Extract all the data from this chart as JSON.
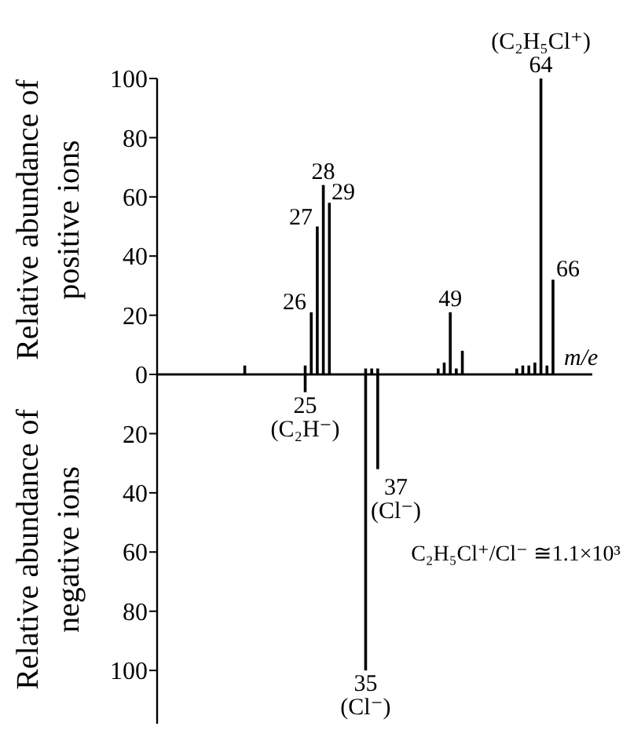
{
  "chart_data": [
    {
      "type": "bar",
      "xlabel": "m/e",
      "ylabel": "Relative abundance of positive ions",
      "ylim": [
        0,
        100
      ],
      "yticks": [
        0,
        20,
        40,
        60,
        80,
        100
      ],
      "color": "#000000",
      "categories": [
        null,
        null,
        null,
        null,
        null,
        null,
        null,
        null,
        null,
        null,
        null,
        null,
        null,
        null,
        null,
        null,
        null,
        null,
        null,
        null,
        null,
        null,
        null,
        null,
        null,
        null,
        null,
        null,
        null,
        null,
        null,
        null,
        null,
        null,
        null,
        null,
        null,
        null,
        null,
        null,
        null,
        null,
        null,
        null,
        null,
        null,
        null,
        null,
        null,
        null,
        null,
        null,
        null,
        null,
        null,
        null,
        null,
        null,
        null,
        null,
        null,
        null,
        null,
        null,
        null,
        null,
        null,
        null,
        null,
        null,
        null,
        null
      ],
      "values": [
        0,
        0,
        0,
        0,
        0,
        0,
        0,
        0,
        0,
        0,
        0,
        0,
        0,
        0,
        3,
        0,
        0,
        0,
        0,
        0,
        0,
        0,
        0,
        0,
        3,
        21,
        50,
        64,
        58,
        0,
        0,
        0,
        0,
        0,
        2,
        2,
        2,
        0,
        0,
        0,
        0,
        0,
        0,
        0,
        0,
        0,
        2,
        4,
        21,
        2,
        8,
        0,
        0,
        0,
        0,
        0,
        0,
        0,
        0,
        2,
        3,
        3,
        4,
        100,
        3,
        32,
        0,
        0,
        0,
        0,
        0,
        0
      ],
      "annotations": [
        "26",
        "27",
        {
          "text": "28",
          "y": 64
        },
        "29",
        {
          "text": "49",
          "y": 21
        },
        {
          "text": "(C₂H₅Cl⁺) 64",
          "y": 100
        },
        "66"
      ]
    },
    {
      "type": "bar",
      "ylabel": "Relative abundance of negative ions",
      "ylim": [
        118,
        0
      ],
      "yticks": [
        20,
        40,
        60,
        80,
        100
      ],
      "color": "#000000",
      "categories": [
        null,
        null,
        null,
        null,
        null,
        null,
        null,
        null,
        null,
        null,
        null,
        null,
        null,
        null,
        null,
        null,
        null,
        null,
        null,
        null,
        null,
        null,
        null,
        null,
        null,
        null,
        null,
        null,
        null,
        null,
        null,
        null,
        null,
        null,
        null,
        null,
        null,
        null,
        null,
        null,
        null,
        null,
        null,
        null,
        null,
        null,
        null,
        null,
        null,
        null,
        null,
        null,
        null,
        null,
        null,
        null,
        null,
        null,
        null,
        null,
        null,
        null,
        null,
        null,
        null,
        null,
        null,
        null,
        null,
        null,
        null,
        null
      ],
      "values": [
        0,
        0,
        0,
        0,
        0,
        0,
        0,
        0,
        0,
        0,
        0,
        0,
        0,
        0,
        0,
        0,
        0,
        0,
        0,
        0,
        0,
        0,
        0,
        0,
        6,
        0,
        0,
        0,
        0,
        0,
        0,
        0,
        0,
        0,
        100,
        0,
        32,
        0,
        0,
        0,
        0,
        0,
        0,
        0,
        0,
        0,
        0,
        0,
        0,
        0,
        0,
        0,
        0,
        0,
        0,
        0,
        0,
        0,
        0,
        0,
        0,
        0,
        0,
        0,
        0,
        0,
        0,
        0,
        0,
        0,
        0,
        0
      ],
      "annotations": [
        {
          "text": "25 (C₂H⁻)",
          "y": 6
        },
        {
          "text": "35 (Cl⁻)",
          "y": 100
        },
        "37 (Cl⁻)",
        "C₂H₅Cl⁺/Cl⁻ ≅1.1×10³"
      ]
    }
  ]
}
